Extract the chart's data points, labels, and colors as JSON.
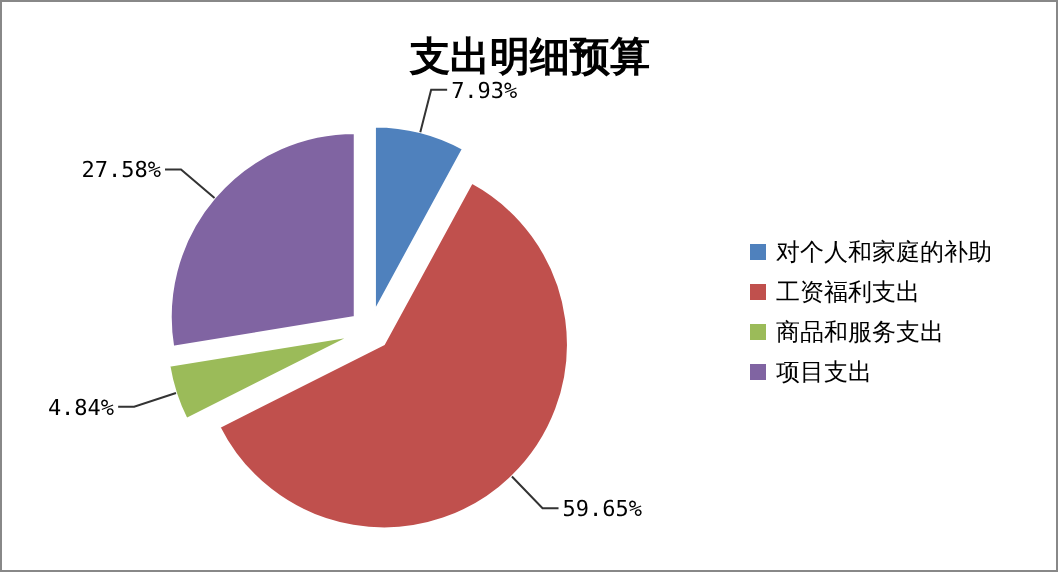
{
  "chart_data": {
    "type": "pie",
    "title": "支出明细预算",
    "categories": [
      "对个人和家庭的补助",
      "工资福利支出",
      "商品和服务支出",
      "项目支出"
    ],
    "values": [
      7.93,
      59.65,
      4.84,
      27.58
    ],
    "value_labels": [
      "7.93%",
      "59.65%",
      "4.84%",
      "27.58%"
    ],
    "colors": [
      "#4f81bd",
      "#c0504d",
      "#9bbb59",
      "#8064a2"
    ],
    "legend": "right"
  }
}
